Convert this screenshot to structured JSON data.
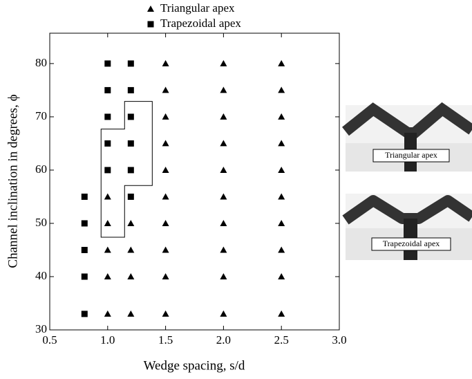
{
  "chart_data": {
    "type": "scatter",
    "xlabel": "Wedge spacing, s/d",
    "ylabel": "Channel inclination in degrees, ϕ",
    "xlim": [
      0.5,
      3.0
    ],
    "ylim": [
      30,
      85.7
    ],
    "xticks": [
      {
        "value": 0.5,
        "label": "0.5"
      },
      {
        "value": 1.0,
        "label": "1.0"
      },
      {
        "value": 1.5,
        "label": "1.5"
      },
      {
        "value": 2.0,
        "label": "2.0"
      },
      {
        "value": 2.5,
        "label": "2.5"
      },
      {
        "value": 3.0,
        "label": "3.0"
      }
    ],
    "yticks": [
      30,
      40,
      50,
      60,
      70,
      80
    ],
    "legend": "top-center",
    "series": [
      {
        "name": "Triangular apex",
        "color": "#000000",
        "marker": "triangle",
        "x": [
          1.0,
          1.0,
          1.0,
          1.0,
          1.0,
          1.2,
          1.2,
          1.2,
          1.2,
          1.5,
          1.5,
          1.5,
          1.5,
          1.5,
          1.5,
          1.5,
          1.5,
          1.5,
          1.5,
          2.0,
          2.0,
          2.0,
          2.0,
          2.0,
          2.0,
          2.0,
          2.0,
          2.0,
          2.0,
          2.5,
          2.5,
          2.5,
          2.5,
          2.5,
          2.5,
          2.5,
          2.5,
          2.5,
          2.5
        ],
        "values": [
          33,
          40,
          45,
          50,
          55,
          33,
          40,
          45,
          50,
          33,
          40,
          45,
          50,
          55,
          60,
          65,
          70,
          75,
          80,
          33,
          40,
          45,
          50,
          55,
          60,
          65,
          70,
          75,
          80,
          33,
          40,
          45,
          50,
          55,
          60,
          65,
          70,
          75,
          80
        ]
      },
      {
        "name": "Trapezoidal apex",
        "color": "#000000",
        "marker": "square",
        "x": [
          0.8,
          0.8,
          0.8,
          0.8,
          0.8,
          1.0,
          1.0,
          1.0,
          1.0,
          1.0,
          1.2,
          1.2,
          1.2,
          1.2,
          1.2,
          1.2
        ],
        "values": [
          33,
          40,
          45,
          50,
          55,
          60,
          65,
          70,
          75,
          80,
          55,
          60,
          65,
          70,
          75,
          80
        ]
      }
    ],
    "boundary": {
      "x": [
        0.943,
        0.943,
        1.146,
        1.146,
        1.385,
        1.385,
        1.146,
        1.146
      ],
      "y": [
        47.4,
        67.7,
        67.7,
        72.9,
        72.9,
        57.1,
        57.1,
        47.4
      ]
    },
    "insets": [
      "Triangular apex",
      "Trapezoidal apex"
    ]
  }
}
